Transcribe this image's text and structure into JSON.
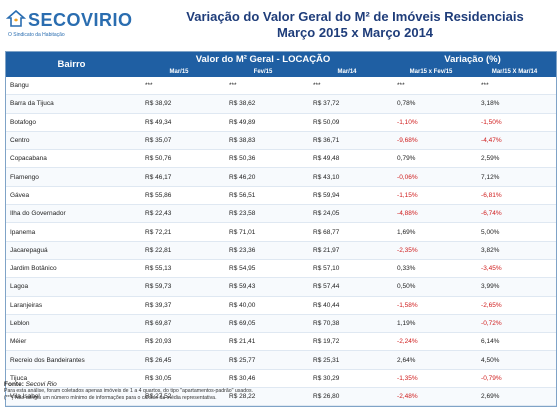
{
  "logo": {
    "name": "SECOVIRIO",
    "tagline": "O Sindicato da Habitação"
  },
  "title": {
    "line1": "Variação do Valor Geral do M² de Imóveis Residenciais",
    "line2": "Março 2015 x Março 2014"
  },
  "table": {
    "bairro_header": "Bairro",
    "valor_group": "Valor do M² Geral - LOCAÇÃO",
    "variacao_group": "Variação  (%)",
    "sub_headers": [
      "Mar/15",
      "Fev/15",
      "Mar/14",
      "Mar15 x Fev/15",
      "Mar/15 X Mar/14"
    ],
    "rows": [
      {
        "bairro": "Bangu",
        "mar15": "***",
        "fev15": "***",
        "mar14": "***",
        "var_fev": "***",
        "var_mar": "***"
      },
      {
        "bairro": "Barra da Tijuca",
        "mar15": "R$ 38,92",
        "fev15": "R$ 38,62",
        "mar14": "R$ 37,72",
        "var_fev": "0,78%",
        "var_mar": "3,18%"
      },
      {
        "bairro": "Botafogo",
        "mar15": "R$ 49,34",
        "fev15": "R$ 49,89",
        "mar14": "R$ 50,09",
        "var_fev": "-1,10%",
        "var_mar": "-1,50%"
      },
      {
        "bairro": "Centro",
        "mar15": "R$ 35,07",
        "fev15": "R$ 38,83",
        "mar14": "R$ 36,71",
        "var_fev": "-9,68%",
        "var_mar": "-4,47%"
      },
      {
        "bairro": "Copacabana",
        "mar15": "R$ 50,76",
        "fev15": "R$ 50,36",
        "mar14": "R$ 49,48",
        "var_fev": "0,79%",
        "var_mar": "2,59%"
      },
      {
        "bairro": "Flamengo",
        "mar15": "R$ 46,17",
        "fev15": "R$ 46,20",
        "mar14": "R$ 43,10",
        "var_fev": "-0,06%",
        "var_mar": "7,12%"
      },
      {
        "bairro": "Gávea",
        "mar15": "R$ 55,86",
        "fev15": "R$ 56,51",
        "mar14": "R$ 59,94",
        "var_fev": "-1,15%",
        "var_mar": "-6,81%"
      },
      {
        "bairro": "Ilha do Governador",
        "mar15": "R$ 22,43",
        "fev15": "R$ 23,58",
        "mar14": "R$ 24,05",
        "var_fev": "-4,88%",
        "var_mar": "-6,74%"
      },
      {
        "bairro": "Ipanema",
        "mar15": "R$ 72,21",
        "fev15": "R$ 71,01",
        "mar14": "R$ 68,77",
        "var_fev": "1,69%",
        "var_mar": "5,00%"
      },
      {
        "bairro": "Jacarepaguá",
        "mar15": "R$ 22,81",
        "fev15": "R$ 23,36",
        "mar14": "R$ 21,97",
        "var_fev": "-2,35%",
        "var_mar": "3,82%"
      },
      {
        "bairro": "Jardim Botânico",
        "mar15": "R$ 55,13",
        "fev15": "R$ 54,95",
        "mar14": "R$ 57,10",
        "var_fev": "0,33%",
        "var_mar": "-3,45%"
      },
      {
        "bairro": "Lagoa",
        "mar15": "R$ 59,73",
        "fev15": "R$ 59,43",
        "mar14": "R$ 57,44",
        "var_fev": "0,50%",
        "var_mar": "3,99%"
      },
      {
        "bairro": "Laranjeiras",
        "mar15": "R$ 39,37",
        "fev15": "R$ 40,00",
        "mar14": "R$ 40,44",
        "var_fev": "-1,58%",
        "var_mar": "-2,65%"
      },
      {
        "bairro": "Leblon",
        "mar15": "R$ 69,87",
        "fev15": "R$ 69,05",
        "mar14": "R$ 70,38",
        "var_fev": "1,19%",
        "var_mar": "-0,72%"
      },
      {
        "bairro": "Méier",
        "mar15": "R$ 20,93",
        "fev15": "R$ 21,41",
        "mar14": "R$ 19,72",
        "var_fev": "-2,24%",
        "var_mar": "6,14%"
      },
      {
        "bairro": "Recreio dos Bandeirantes",
        "mar15": "R$ 26,45",
        "fev15": "R$ 25,77",
        "mar14": "R$ 25,31",
        "var_fev": "2,64%",
        "var_mar": "4,50%"
      },
      {
        "bairro": "Tijuca",
        "mar15": "R$ 30,05",
        "fev15": "R$ 30,46",
        "mar14": "R$ 30,29",
        "var_fev": "-1,35%",
        "var_mar": "-0,79%"
      },
      {
        "bairro": "Vila Isabel",
        "mar15": "R$ 27,52",
        "fev15": "R$ 28,22",
        "mar14": "R$ 26,80",
        "var_fev": "-2,48%",
        "var_mar": "2,69%"
      }
    ]
  },
  "footer": {
    "source_label": "Fonte:",
    "source_name": "Secovi Rio",
    "note1": "Para esta análise, foram coletados apenas imóveis de 1 a 4 quartos, do tipo \"apartamentos-padrão\" usados.",
    "note2": "(***) Não atingiu um número mínimo de informações para o cálculo da média representativa."
  },
  "colors": {
    "header_bg": "#1f5fa3",
    "negative": "#d01c1c",
    "title": "#1f3d7a",
    "logo": "#2a6db0"
  }
}
